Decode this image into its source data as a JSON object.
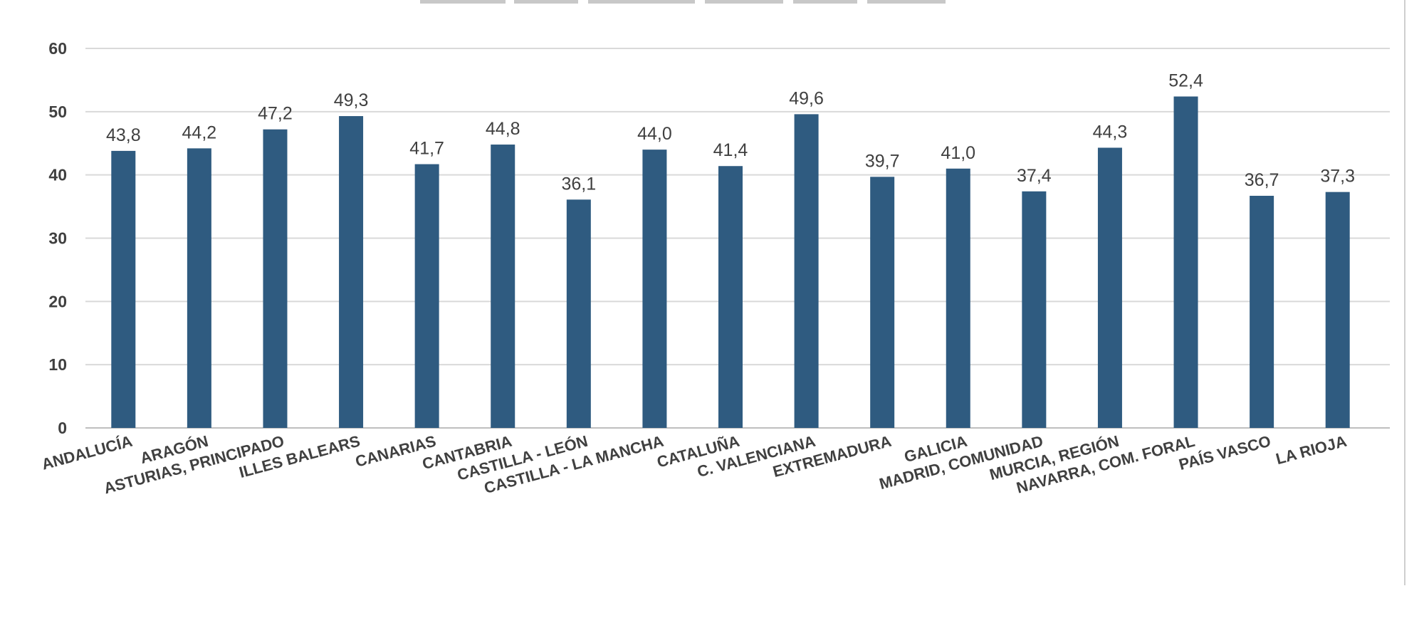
{
  "chart_data": {
    "type": "bar",
    "categories": [
      "ANDALUCÍA",
      "ARAGÓN",
      "ASTURIAS, PRINCIPADO",
      "ILLES BALEARS",
      "CANARIAS",
      "CANTABRIA",
      "CASTILLA - LEÓN",
      "CASTILLA - LA MANCHA",
      "CATALUÑA",
      "C. VALENCIANA",
      "EXTREMADURA",
      "GALICIA",
      "MADRID, COMUNIDAD",
      "MURCIA, REGIÓN",
      "NAVARRA, COM. FORAL",
      "PAÍS VASCO",
      "LA RIOJA"
    ],
    "values": [
      43.8,
      44.2,
      47.2,
      49.3,
      41.7,
      44.8,
      36.1,
      44.0,
      41.4,
      49.6,
      39.7,
      41.0,
      37.4,
      44.3,
      52.4,
      36.7,
      37.3
    ],
    "data_labels": [
      "43,8",
      "44,2",
      "47,2",
      "49,3",
      "41,7",
      "44,8",
      "36,1",
      "44,0",
      "41,4",
      "49,6",
      "39,7",
      "41,0",
      "37,4",
      "44,3",
      "52,4",
      "36,7",
      "37,3"
    ],
    "yticks": [
      "0",
      "10",
      "20",
      "30",
      "40",
      "50",
      "60"
    ],
    "ylim": [
      0,
      60
    ],
    "grid": true,
    "legend": "none",
    "bar_color": "#2f5b80",
    "grid_color": "#d9d9d9",
    "text_color": "#404040"
  }
}
